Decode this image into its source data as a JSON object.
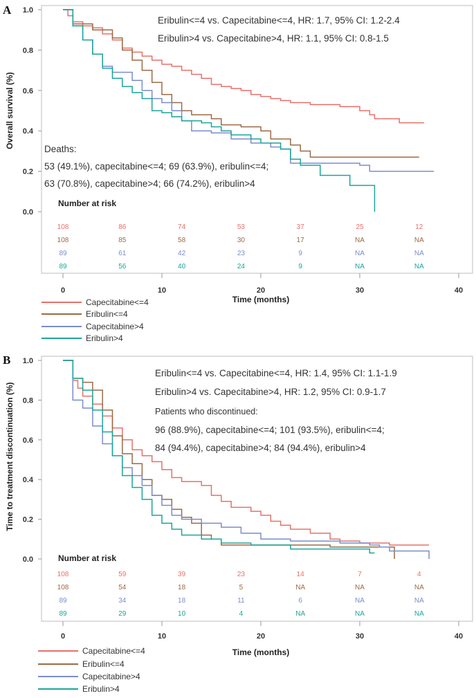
{
  "colors": {
    "Capecitabine<=4": "#e8706a",
    "Eribulin<=4": "#9b6a45",
    "Capecitabine>4": "#7a8ccc",
    "Eribulin>4": "#1aa59a"
  },
  "chart_data": [
    {
      "type": "line",
      "panel": "A",
      "ylabel": "Overall survival (%)",
      "xlabel": "Time (months)",
      "xlim": [
        0,
        40
      ],
      "ylim": [
        0,
        1
      ],
      "xticks": [
        "0",
        "10",
        "20",
        "30",
        "40"
      ],
      "yticks": [
        "0.0",
        "0.2",
        "0.4",
        "0.6",
        "0.8",
        "1.0"
      ],
      "annotations": [
        "Eribulin<=4 vs. Capecitabine<=4, HR: 1.7, 95% CI: 1.2-2.4",
        "Eribulin>4 vs. Capecitabine>4, HR: 1.1, 95% CI: 0.8-1.5"
      ],
      "events_title": "Deaths:",
      "events_lines": [
        "53 (49.1%), capecitabine<=4; 69 (63.9%), eribulin<=4;",
        "63 (70.8%), capecitabine>4; 66 (74.2%), eribulin>4"
      ],
      "risk_title": "Number at risk",
      "risk_times": [
        0,
        6,
        12,
        18,
        24,
        30,
        36
      ],
      "risk": [
        [
          "108",
          "86",
          "74",
          "53",
          "37",
          "25",
          "12"
        ],
        [
          "108",
          "85",
          "58",
          "30",
          "17",
          "NA",
          "NA"
        ],
        [
          "89",
          "61",
          "42",
          "23",
          "9",
          "NA",
          "NA"
        ],
        [
          "89",
          "56",
          "40",
          "24",
          "9",
          "NA",
          "NA"
        ]
      ],
      "legend": [
        "Capecitabine<=4",
        "Eribulin<=4",
        "Capecitabine>4",
        "Eribulin>4"
      ],
      "series": [
        {
          "name": "Capecitabine<=4",
          "points": [
            [
              0,
              1
            ],
            [
              0.5,
              0.97
            ],
            [
              1,
              0.94
            ],
            [
              2,
              0.92
            ],
            [
              3,
              0.91
            ],
            [
              4,
              0.88
            ],
            [
              5,
              0.85
            ],
            [
              6,
              0.81
            ],
            [
              7,
              0.79
            ],
            [
              8,
              0.77
            ],
            [
              9,
              0.75
            ],
            [
              10,
              0.73
            ],
            [
              11,
              0.72
            ],
            [
              12,
              0.7
            ],
            [
              13,
              0.68
            ],
            [
              14,
              0.66
            ],
            [
              15,
              0.63
            ],
            [
              16,
              0.62
            ],
            [
              17,
              0.61
            ],
            [
              18,
              0.6
            ],
            [
              19,
              0.58
            ],
            [
              20,
              0.57
            ],
            [
              21,
              0.56
            ],
            [
              22,
              0.55
            ],
            [
              23,
              0.54
            ],
            [
              25,
              0.53
            ],
            [
              28,
              0.52
            ],
            [
              30,
              0.5
            ],
            [
              31,
              0.48
            ],
            [
              31.5,
              0.46
            ],
            [
              34,
              0.44
            ],
            [
              36.5,
              0.44
            ]
          ]
        },
        {
          "name": "Eribulin<=4",
          "points": [
            [
              0,
              1
            ],
            [
              1,
              0.93
            ],
            [
              3,
              0.9
            ],
            [
              5,
              0.86
            ],
            [
              6,
              0.8
            ],
            [
              7,
              0.75
            ],
            [
              8,
              0.7
            ],
            [
              9,
              0.64
            ],
            [
              10,
              0.58
            ],
            [
              11,
              0.54
            ],
            [
              12,
              0.5
            ],
            [
              13,
              0.48
            ],
            [
              15,
              0.46
            ],
            [
              16,
              0.43
            ],
            [
              18,
              0.42
            ],
            [
              20,
              0.4
            ],
            [
              21,
              0.36
            ],
            [
              23,
              0.33
            ],
            [
              24,
              0.3
            ],
            [
              25,
              0.27
            ],
            [
              36,
              0.27
            ]
          ]
        },
        {
          "name": "Capecitabine>4",
          "points": [
            [
              0,
              1
            ],
            [
              1,
              0.92
            ],
            [
              2,
              0.85
            ],
            [
              3,
              0.78
            ],
            [
              4,
              0.72
            ],
            [
              5,
              0.69
            ],
            [
              6.5,
              0.69
            ],
            [
              7,
              0.65
            ],
            [
              8,
              0.6
            ],
            [
              9,
              0.56
            ],
            [
              10,
              0.54
            ],
            [
              11,
              0.5
            ],
            [
              12,
              0.45
            ],
            [
              13,
              0.4
            ],
            [
              15,
              0.39
            ],
            [
              17,
              0.36
            ],
            [
              19,
              0.34
            ],
            [
              21,
              0.32
            ],
            [
              22,
              0.31
            ],
            [
              23,
              0.24
            ],
            [
              30,
              0.23
            ],
            [
              31,
              0.2
            ],
            [
              37.5,
              0.2
            ]
          ]
        },
        {
          "name": "Eribulin>4",
          "points": [
            [
              0,
              1
            ],
            [
              1,
              0.92
            ],
            [
              2,
              0.85
            ],
            [
              3,
              0.78
            ],
            [
              4,
              0.71
            ],
            [
              5,
              0.66
            ],
            [
              6,
              0.62
            ],
            [
              7,
              0.59
            ],
            [
              8,
              0.56
            ],
            [
              9,
              0.5
            ],
            [
              10,
              0.49
            ],
            [
              11,
              0.47
            ],
            [
              12,
              0.45
            ],
            [
              14,
              0.44
            ],
            [
              15,
              0.42
            ],
            [
              16,
              0.4
            ],
            [
              17,
              0.38
            ],
            [
              19,
              0.36
            ],
            [
              20,
              0.34
            ],
            [
              22,
              0.31
            ],
            [
              23,
              0.26
            ],
            [
              24,
              0.23
            ],
            [
              26,
              0.18
            ],
            [
              29,
              0.13
            ],
            [
              31.5,
              0.13
            ],
            [
              31.5,
              0
            ]
          ]
        }
      ]
    },
    {
      "type": "line",
      "panel": "B",
      "ylabel": "Time to treatment discontinuation  (%)",
      "xlabel": "Time (months)",
      "xlim": [
        0,
        40
      ],
      "ylim": [
        0,
        1
      ],
      "xticks": [
        "0",
        "10",
        "20",
        "30",
        "40"
      ],
      "yticks": [
        "0.0",
        "0.2",
        "0.4",
        "0.6",
        "0.8",
        "1.0"
      ],
      "annotations": [
        "Eribulin<=4 vs. Capecitabine<=4, HR: 1.4, 95% CI: 1.1-1.9",
        "Eribulin>4 vs. Capecitabine>4, HR: 1.2, 95% CI: 0.9-1.7"
      ],
      "events_title": "Patients who discontinued:",
      "events_lines": [
        "96 (88.9%), capecitabine<=4; 101 (93.5%), eribulin<=4;",
        "84 (94.4%), capecitabine>4; 84 (94.4%), eribulin>4"
      ],
      "risk_title": "Number at risk",
      "risk_times": [
        0,
        6,
        12,
        18,
        24,
        30,
        36
      ],
      "risk": [
        [
          "108",
          "59",
          "39",
          "23",
          "14",
          "7",
          "4"
        ],
        [
          "108",
          "54",
          "18",
          "5",
          "NA",
          "NA",
          "NA"
        ],
        [
          "89",
          "34",
          "18",
          "11",
          "6",
          "NA",
          "NA"
        ],
        [
          "89",
          "29",
          "10",
          "4",
          "NA",
          "NA",
          "NA"
        ]
      ],
      "legend": [
        "Capecitabine<=4",
        "Eribulin<=4",
        "Capecitabine>4",
        "Eribulin>4"
      ],
      "series": [
        {
          "name": "Capecitabine<=4",
          "points": [
            [
              0,
              1
            ],
            [
              1,
              0.9
            ],
            [
              1.5,
              0.86
            ],
            [
              2,
              0.82
            ],
            [
              3,
              0.78
            ],
            [
              4,
              0.72
            ],
            [
              5,
              0.66
            ],
            [
              6,
              0.6
            ],
            [
              7,
              0.55
            ],
            [
              8,
              0.52
            ],
            [
              9,
              0.49
            ],
            [
              10,
              0.45
            ],
            [
              11,
              0.41
            ],
            [
              12,
              0.39
            ],
            [
              14,
              0.37
            ],
            [
              15,
              0.32
            ],
            [
              16,
              0.29
            ],
            [
              17,
              0.26
            ],
            [
              19,
              0.24
            ],
            [
              20,
              0.22
            ],
            [
              21,
              0.19
            ],
            [
              22,
              0.17
            ],
            [
              23,
              0.15
            ],
            [
              25,
              0.13
            ],
            [
              27,
              0.1
            ],
            [
              28,
              0.09
            ],
            [
              30,
              0.08
            ],
            [
              33,
              0.07
            ],
            [
              37,
              0.07
            ]
          ]
        },
        {
          "name": "Eribulin<=4",
          "points": [
            [
              0,
              1
            ],
            [
              1,
              0.91
            ],
            [
              2,
              0.89
            ],
            [
              3,
              0.85
            ],
            [
              4,
              0.75
            ],
            [
              5,
              0.62
            ],
            [
              6,
              0.53
            ],
            [
              7,
              0.48
            ],
            [
              8,
              0.4
            ],
            [
              9,
              0.32
            ],
            [
              10,
              0.3
            ],
            [
              11,
              0.25
            ],
            [
              12,
              0.21
            ],
            [
              13,
              0.18
            ],
            [
              14,
              0.12
            ],
            [
              15,
              0.1
            ],
            [
              16,
              0.07
            ],
            [
              24,
              0.07
            ],
            [
              27,
              0.06
            ],
            [
              33.5,
              0.06
            ],
            [
              33.5,
              0
            ]
          ]
        },
        {
          "name": "Capecitabine>4",
          "points": [
            [
              0,
              1
            ],
            [
              1,
              0.8
            ],
            [
              2,
              0.76
            ],
            [
              3,
              0.67
            ],
            [
              4,
              0.58
            ],
            [
              5,
              0.52
            ],
            [
              6,
              0.46
            ],
            [
              7,
              0.42
            ],
            [
              8,
              0.37
            ],
            [
              9,
              0.32
            ],
            [
              10,
              0.27
            ],
            [
              11,
              0.22
            ],
            [
              12,
              0.2
            ],
            [
              14,
              0.18
            ],
            [
              16,
              0.16
            ],
            [
              18,
              0.13
            ],
            [
              20,
              0.1
            ],
            [
              23,
              0.09
            ],
            [
              28,
              0.08
            ],
            [
              31,
              0.07
            ],
            [
              32,
              0.06
            ],
            [
              33,
              0.04
            ],
            [
              37,
              0.03
            ],
            [
              37,
              0
            ]
          ]
        },
        {
          "name": "Eribulin>4",
          "points": [
            [
              0,
              1
            ],
            [
              1,
              0.91
            ],
            [
              2,
              0.85
            ],
            [
              3,
              0.75
            ],
            [
              4,
              0.64
            ],
            [
              5,
              0.52
            ],
            [
              6,
              0.42
            ],
            [
              7,
              0.36
            ],
            [
              8,
              0.3
            ],
            [
              9,
              0.22
            ],
            [
              10,
              0.18
            ],
            [
              11,
              0.15
            ],
            [
              12,
              0.12
            ],
            [
              14,
              0.1
            ],
            [
              16,
              0.08
            ],
            [
              19,
              0.07
            ],
            [
              23,
              0.05
            ],
            [
              31,
              0.03
            ],
            [
              31.5,
              0.03
            ]
          ]
        }
      ]
    }
  ]
}
